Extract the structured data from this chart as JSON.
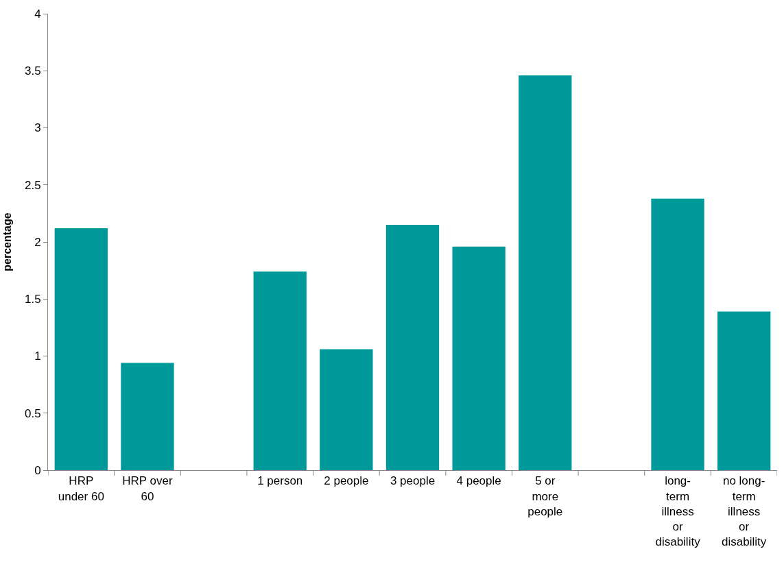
{
  "chart_data": {
    "type": "bar",
    "ylabel": "percentage",
    "categories": [
      "HRP under 60",
      "HRP over 60",
      null,
      "1 person",
      "2 people",
      "3 people",
      "4 people",
      "5 or more people",
      null,
      "long-term illness or disability",
      "no long-term illness or disability"
    ],
    "values": [
      2.12,
      0.94,
      null,
      1.74,
      1.06,
      2.15,
      1.96,
      3.46,
      null,
      2.38,
      1.39
    ],
    "color": "#009999",
    "ylim": [
      0,
      4
    ],
    "yticks": [
      0,
      0.5,
      1,
      1.5,
      2,
      2.5,
      3,
      3.5,
      4
    ]
  }
}
